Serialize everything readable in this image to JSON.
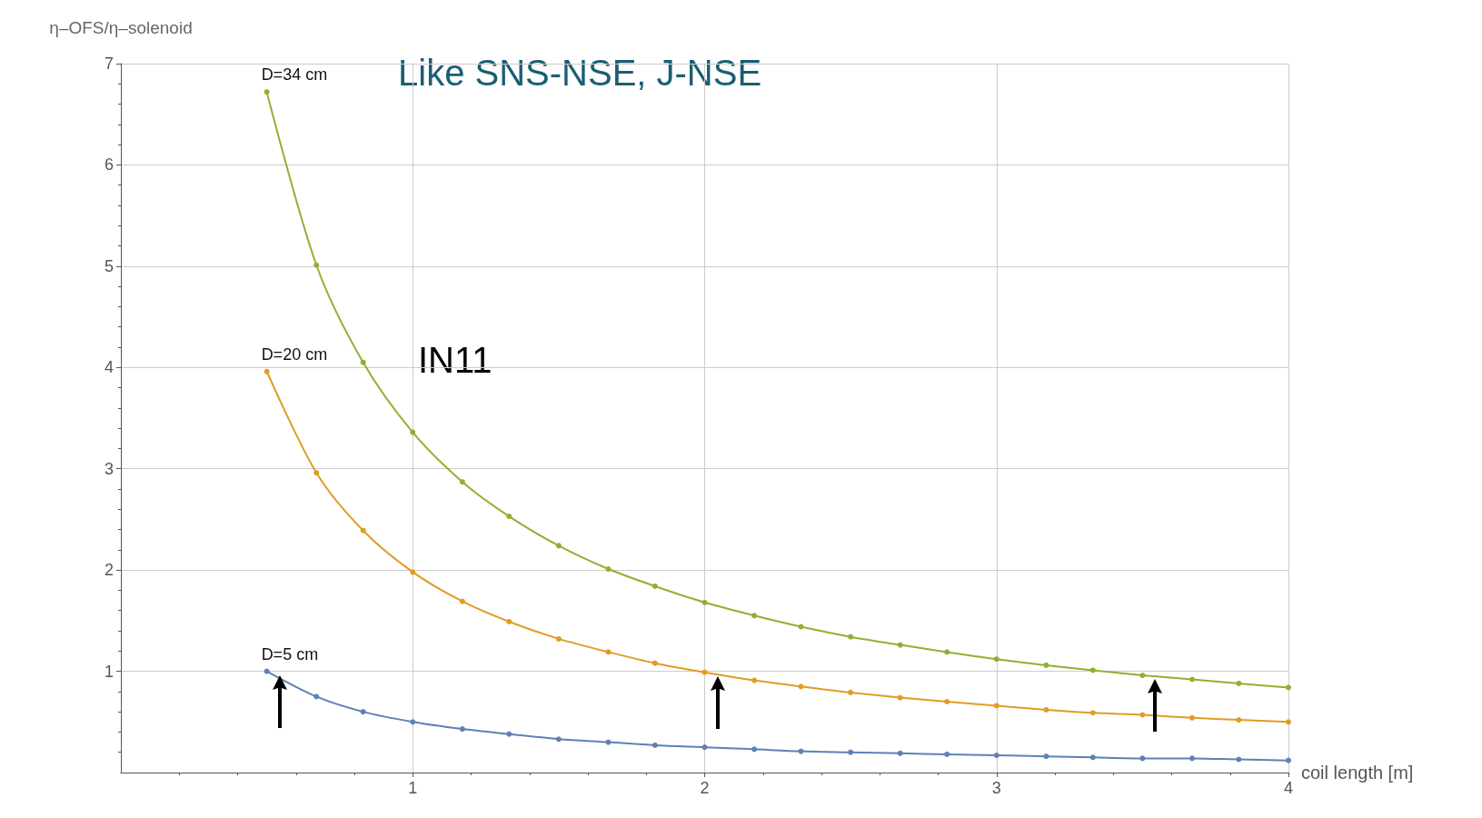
{
  "chart_data": {
    "type": "line",
    "xlabel": "coil length [m]",
    "ylabel": "η–OFS/η–solenoid",
    "x": [
      0.5,
      0.67,
      0.83,
      1,
      1.17,
      1.33,
      1.5,
      1.67,
      1.83,
      2,
      2.17,
      2.33,
      2.5,
      2.67,
      2.83,
      3,
      3.17,
      3.33,
      3.5,
      3.67,
      3.83,
      4
    ],
    "series": [
      {
        "name": "D=5 cm",
        "color": "#5e81b5",
        "values": [
          1.0,
          0.75,
          0.6,
          0.5,
          0.43,
          0.38,
          0.33,
          0.3,
          0.27,
          0.25,
          0.23,
          0.21,
          0.2,
          0.19,
          0.18,
          0.17,
          0.16,
          0.15,
          0.14,
          0.14,
          0.13,
          0.12
        ]
      },
      {
        "name": "D=20 cm",
        "color": "#e19c24",
        "values": [
          3.96,
          2.96,
          2.39,
          1.98,
          1.69,
          1.49,
          1.32,
          1.19,
          1.08,
          0.99,
          0.91,
          0.85,
          0.79,
          0.74,
          0.7,
          0.66,
          0.62,
          0.59,
          0.57,
          0.54,
          0.52,
          0.5
        ]
      },
      {
        "name": "D=34 cm",
        "color": "#8fb131",
        "values": [
          6.72,
          5.01,
          4.05,
          3.36,
          2.87,
          2.53,
          2.24,
          2.01,
          1.84,
          1.68,
          1.55,
          1.44,
          1.34,
          1.26,
          1.19,
          1.12,
          1.06,
          1.01,
          0.96,
          0.92,
          0.88,
          0.84
        ]
      }
    ],
    "xlim": [
      0,
      4
    ],
    "xticks": [
      1,
      2,
      3,
      4
    ],
    "ylim": [
      0,
      7
    ],
    "yticks": [
      1,
      2,
      3,
      4,
      5,
      6,
      7
    ],
    "grid": true,
    "marker": "circle",
    "line_style": "solid",
    "annotations": [
      "Like SNS-NSE, J-NSE",
      "IN11"
    ]
  }
}
